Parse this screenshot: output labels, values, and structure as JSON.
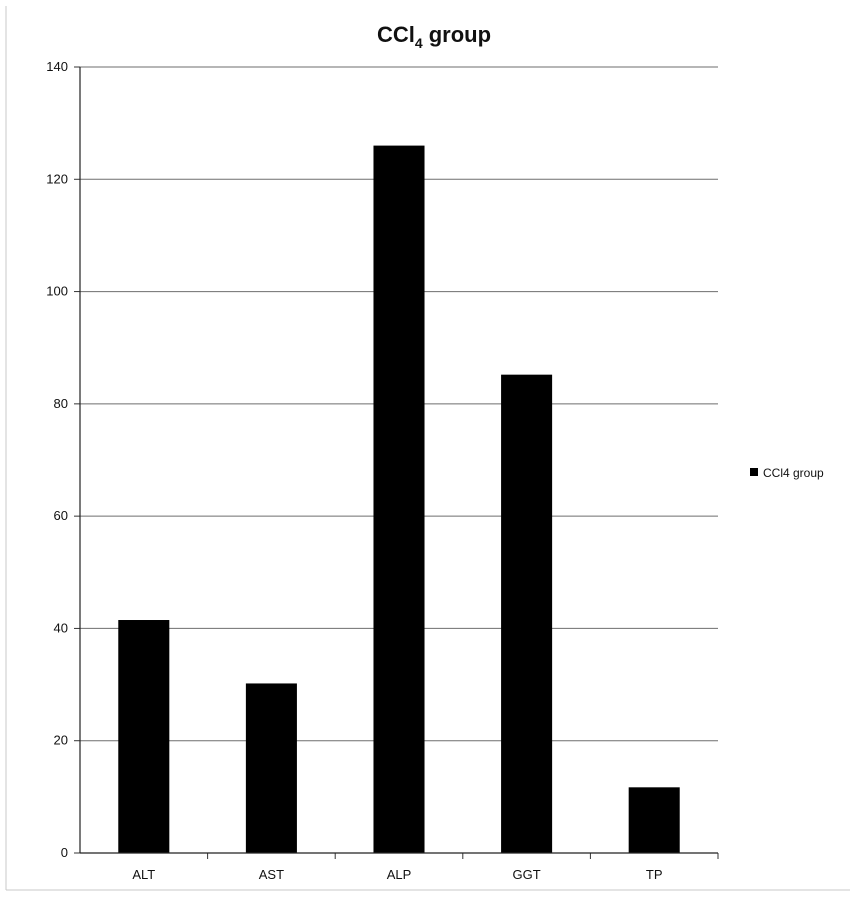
{
  "chart_data": {
    "type": "bar",
    "title_main": "CCl",
    "title_sub": "4",
    "title_rest": " group",
    "categories": [
      "ALT",
      "AST",
      "ALP",
      "GGT",
      "TP"
    ],
    "series": [
      {
        "name": "CCl4 group",
        "values": [
          41.5,
          30.2,
          126,
          85.2,
          11.7
        ]
      }
    ],
    "ylim": [
      0,
      140
    ],
    "yticks": [
      0,
      20,
      40,
      60,
      80,
      100,
      120,
      140
    ],
    "grid": true,
    "legend_position": "right",
    "bar_color": "#000000",
    "grid_color": "#6e6e6e"
  }
}
